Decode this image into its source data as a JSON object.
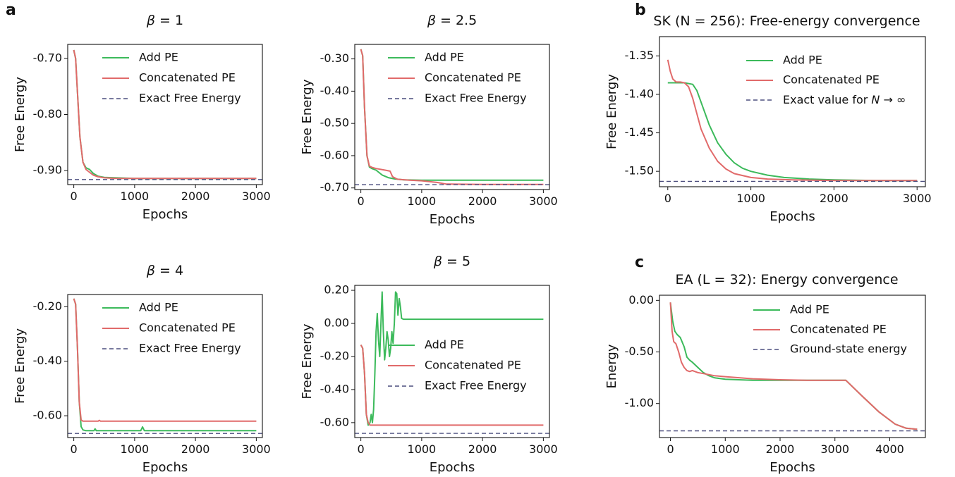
{
  "panel_letters": [
    "a",
    "b",
    "c"
  ],
  "colors": {
    "add": "#3cba5b",
    "concat": "#e16a6a",
    "exact": "#4b4e7e"
  },
  "chart_data": [
    {
      "id": "a1",
      "type": "line",
      "title": "β = 1",
      "xlabel": "Epochs",
      "ylabel": "Free Energy",
      "xlim": [
        -100,
        3100
      ],
      "ylim": [
        -0.925,
        -0.675
      ],
      "xticks": [
        0,
        1000,
        2000,
        3000
      ],
      "xtick_labels": [
        "0",
        "1000",
        "2000",
        "3000"
      ],
      "yticks": [
        -0.7,
        -0.8,
        -0.9
      ],
      "ytick_labels": [
        "-0.70",
        "-0.80",
        "-0.90"
      ],
      "legend": "top-right",
      "series": [
        {
          "name": "Add PE",
          "color_key": "add",
          "x": [
            0,
            30,
            60,
            100,
            150,
            200,
            260,
            320,
            400,
            500,
            700,
            1000,
            1500,
            2000,
            3000
          ],
          "y": [
            -0.685,
            -0.7,
            -0.76,
            -0.84,
            -0.885,
            -0.895,
            -0.898,
            -0.905,
            -0.91,
            -0.912,
            -0.913,
            -0.914,
            -0.914,
            -0.914,
            -0.914
          ]
        },
        {
          "name": "Concatenated PE",
          "color_key": "concat",
          "x": [
            0,
            30,
            60,
            100,
            150,
            200,
            260,
            320,
            400,
            500,
            700,
            1000,
            1500,
            2000,
            3000
          ],
          "y": [
            -0.685,
            -0.7,
            -0.76,
            -0.84,
            -0.885,
            -0.898,
            -0.903,
            -0.908,
            -0.911,
            -0.913,
            -0.914,
            -0.914,
            -0.914,
            -0.914,
            -0.914
          ]
        },
        {
          "name": "Exact Free Energy",
          "color_key": "exact",
          "dashed": true,
          "x": [
            -100,
            3100
          ],
          "y": [
            -0.916,
            -0.916
          ]
        }
      ]
    },
    {
      "id": "a2",
      "type": "line",
      "title": "β = 2.5",
      "xlabel": "Epochs",
      "ylabel": "Free Energy",
      "xlim": [
        -100,
        3100
      ],
      "ylim": [
        -0.705,
        -0.255
      ],
      "xticks": [
        0,
        1000,
        2000,
        3000
      ],
      "xtick_labels": [
        "0",
        "1000",
        "2000",
        "3000"
      ],
      "yticks": [
        -0.3,
        -0.4,
        -0.5,
        -0.6,
        -0.7
      ],
      "ytick_labels": [
        "-0.30",
        "-0.40",
        "-0.50",
        "-0.60",
        "-0.70"
      ],
      "legend": "top-right",
      "series": [
        {
          "name": "Add PE",
          "color_key": "add",
          "x": [
            0,
            30,
            60,
            100,
            140,
            180,
            250,
            350,
            450,
            550,
            700,
            1000,
            2000,
            3000
          ],
          "y": [
            -0.27,
            -0.29,
            -0.45,
            -0.6,
            -0.635,
            -0.64,
            -0.645,
            -0.66,
            -0.668,
            -0.672,
            -0.675,
            -0.676,
            -0.676,
            -0.676
          ]
        },
        {
          "name": "Concatenated PE",
          "color_key": "concat",
          "x": [
            0,
            30,
            60,
            100,
            140,
            180,
            250,
            400,
            480,
            520,
            600,
            800,
            1000,
            1250,
            1400,
            2000,
            3000
          ],
          "y": [
            -0.27,
            -0.29,
            -0.45,
            -0.6,
            -0.632,
            -0.636,
            -0.64,
            -0.645,
            -0.648,
            -0.665,
            -0.673,
            -0.676,
            -0.678,
            -0.683,
            -0.688,
            -0.689,
            -0.689
          ]
        },
        {
          "name": "Exact Free Energy",
          "color_key": "exact",
          "dashed": true,
          "x": [
            -100,
            3100
          ],
          "y": [
            -0.69,
            -0.69
          ]
        }
      ]
    },
    {
      "id": "a3",
      "type": "line",
      "title": "β = 4",
      "xlabel": "Epochs",
      "ylabel": "Free Energy",
      "xlim": [
        -100,
        3100
      ],
      "ylim": [
        -0.68,
        -0.155
      ],
      "xticks": [
        0,
        1000,
        2000,
        3000
      ],
      "xtick_labels": [
        "0",
        "1000",
        "2000",
        "3000"
      ],
      "yticks": [
        -0.2,
        -0.4,
        -0.6
      ],
      "ytick_labels": [
        "-0.20",
        "-0.40",
        "-0.60"
      ],
      "legend": "top-right",
      "series": [
        {
          "name": "Add PE",
          "color_key": "add",
          "x": [
            0,
            30,
            60,
            90,
            120,
            150,
            200,
            330,
            350,
            370,
            1100,
            1130,
            1160,
            2000,
            3000
          ],
          "y": [
            -0.17,
            -0.19,
            -0.35,
            -0.55,
            -0.64,
            -0.652,
            -0.655,
            -0.655,
            -0.648,
            -0.655,
            -0.655,
            -0.641,
            -0.655,
            -0.655,
            -0.655
          ]
        },
        {
          "name": "Concatenated PE",
          "color_key": "concat",
          "x": [
            0,
            30,
            60,
            90,
            120,
            150,
            200,
            400,
            420,
            440,
            1000,
            2000,
            3000
          ],
          "y": [
            -0.17,
            -0.19,
            -0.35,
            -0.55,
            -0.615,
            -0.62,
            -0.62,
            -0.62,
            -0.617,
            -0.62,
            -0.62,
            -0.62,
            -0.62
          ]
        },
        {
          "name": "Exact Free Energy",
          "color_key": "exact",
          "dashed": true,
          "x": [
            -100,
            3100
          ],
          "y": [
            -0.665,
            -0.665
          ]
        }
      ]
    },
    {
      "id": "a4",
      "type": "line",
      "title": "β = 5",
      "xlabel": "Epochs",
      "ylabel": "Free Energy",
      "xlim": [
        -100,
        3100
      ],
      "ylim": [
        -0.69,
        0.23
      ],
      "xticks": [
        0,
        1000,
        2000,
        3000
      ],
      "xtick_labels": [
        "0",
        "1000",
        "2000",
        "3000"
      ],
      "yticks": [
        0.2,
        0.0,
        -0.2,
        -0.4,
        -0.6
      ],
      "ytick_labels": [
        "0.20",
        "0.00",
        "-0.20",
        "-0.40",
        "-0.60"
      ],
      "legend": "center-right",
      "series": [
        {
          "name": "Add PE",
          "color_key": "add",
          "x": [
            0,
            30,
            60,
            90,
            120,
            150,
            170,
            190,
            210,
            230,
            250,
            270,
            290,
            310,
            330,
            350,
            370,
            390,
            410,
            430,
            450,
            470,
            490,
            510,
            530,
            550,
            570,
            590,
            610,
            630,
            650,
            670,
            700,
            720,
            800,
            1500,
            2000,
            3000
          ],
          "y": [
            -0.13,
            -0.15,
            -0.3,
            -0.55,
            -0.615,
            -0.6,
            -0.55,
            -0.6,
            -0.52,
            -0.3,
            -0.05,
            0.06,
            -0.1,
            -0.2,
            0.0,
            0.19,
            -0.05,
            -0.22,
            -0.15,
            -0.05,
            -0.1,
            -0.2,
            -0.15,
            -0.05,
            -0.12,
            0.0,
            0.19,
            0.18,
            0.05,
            0.15,
            0.1,
            0.03,
            0.025,
            0.025,
            0.025,
            0.025,
            0.025,
            0.025
          ]
        },
        {
          "name": "Concatenated PE",
          "color_key": "concat",
          "x": [
            0,
            30,
            60,
            90,
            120,
            150,
            200,
            1000,
            2000,
            3000
          ],
          "y": [
            -0.13,
            -0.15,
            -0.3,
            -0.55,
            -0.6,
            -0.615,
            -0.615,
            -0.615,
            -0.615,
            -0.615
          ]
        },
        {
          "name": "Exact Free Energy",
          "color_key": "exact",
          "dashed": true,
          "x": [
            -100,
            3100
          ],
          "y": [
            -0.665,
            -0.665
          ]
        }
      ]
    },
    {
      "id": "b",
      "type": "line",
      "title": "SK (N = 256): Free-energy convergence",
      "xlabel": "Epochs",
      "ylabel": "Free Energy",
      "xlim": [
        -100,
        3100
      ],
      "ylim": [
        -1.52,
        -1.325
      ],
      "xticks": [
        0,
        1000,
        2000,
        3000
      ],
      "xtick_labels": [
        "0",
        "1000",
        "2000",
        "3000"
      ],
      "yticks": [
        -1.35,
        -1.4,
        -1.45,
        -1.5
      ],
      "ytick_labels": [
        "-1.35",
        "-1.40",
        "-1.45",
        "-1.50"
      ],
      "legend": "top-right",
      "series": [
        {
          "name": "Add PE",
          "color_key": "add",
          "x": [
            0,
            50,
            100,
            200,
            300,
            350,
            400,
            450,
            500,
            600,
            700,
            800,
            900,
            1000,
            1200,
            1400,
            1700,
            2000,
            2500,
            3000
          ],
          "y": [
            -1.385,
            -1.385,
            -1.385,
            -1.385,
            -1.387,
            -1.395,
            -1.41,
            -1.425,
            -1.44,
            -1.463,
            -1.478,
            -1.489,
            -1.496,
            -1.5,
            -1.505,
            -1.508,
            -1.51,
            -1.511,
            -1.512,
            -1.512
          ]
        },
        {
          "name": "Concatenated PE",
          "color_key": "concat",
          "x": [
            0,
            30,
            60,
            100,
            150,
            200,
            250,
            300,
            350,
            400,
            500,
            600,
            700,
            800,
            1000,
            1200,
            1500,
            2000,
            2500,
            3000
          ],
          "y": [
            -1.355,
            -1.37,
            -1.38,
            -1.384,
            -1.384,
            -1.385,
            -1.39,
            -1.405,
            -1.425,
            -1.445,
            -1.47,
            -1.487,
            -1.497,
            -1.503,
            -1.508,
            -1.51,
            -1.511,
            -1.512,
            -1.512,
            -1.512
          ]
        },
        {
          "name": "Exact value for N → ∞",
          "color_key": "exact",
          "dashed": true,
          "x": [
            -100,
            3100
          ],
          "y": [
            -1.513,
            -1.513
          ]
        }
      ]
    },
    {
      "id": "c",
      "type": "line",
      "title": "EA (L = 32): Energy convergence",
      "xlabel": "Epochs",
      "ylabel": "Energy",
      "xlim": [
        -200,
        4650
      ],
      "ylim": [
        -1.33,
        0.05
      ],
      "xticks": [
        0,
        1000,
        2000,
        3000,
        4000
      ],
      "xtick_labels": [
        "0",
        "1000",
        "2000",
        "3000",
        "4000"
      ],
      "yticks": [
        0.0,
        -0.5,
        -1.0
      ],
      "ytick_labels": [
        "0.00",
        "-0.50",
        "-1.00"
      ],
      "legend": "top-right",
      "series": [
        {
          "name": "Add PE",
          "color_key": "add",
          "x": [
            0,
            40,
            80,
            120,
            180,
            250,
            300,
            350,
            400,
            500,
            600,
            700,
            800,
            1000,
            1500,
            2000,
            2500,
            3000,
            3200,
            3500,
            3800,
            4100,
            4300,
            4500
          ],
          "y": [
            -0.02,
            -0.2,
            -0.3,
            -0.33,
            -0.36,
            -0.45,
            -0.55,
            -0.58,
            -0.6,
            -0.65,
            -0.7,
            -0.73,
            -0.75,
            -0.765,
            -0.775,
            -0.775,
            -0.775,
            -0.775,
            -0.775,
            -0.93,
            -1.08,
            -1.2,
            -1.24,
            -1.25
          ]
        },
        {
          "name": "Concatenated PE",
          "color_key": "concat",
          "x": [
            0,
            30,
            60,
            100,
            150,
            200,
            250,
            300,
            350,
            400,
            500,
            600,
            800,
            1000,
            1500,
            2000,
            2500,
            3000,
            3200,
            3500,
            3800,
            4100,
            4300,
            4500
          ],
          "y": [
            -0.02,
            -0.3,
            -0.4,
            -0.42,
            -0.5,
            -0.6,
            -0.65,
            -0.68,
            -0.69,
            -0.68,
            -0.7,
            -0.71,
            -0.73,
            -0.74,
            -0.76,
            -0.77,
            -0.775,
            -0.775,
            -0.775,
            -0.93,
            -1.08,
            -1.2,
            -1.24,
            -1.25
          ]
        },
        {
          "name": "Ground-state energy",
          "color_key": "exact",
          "dashed": true,
          "x": [
            -200,
            4650
          ],
          "y": [
            -1.265,
            -1.265
          ]
        }
      ]
    }
  ]
}
